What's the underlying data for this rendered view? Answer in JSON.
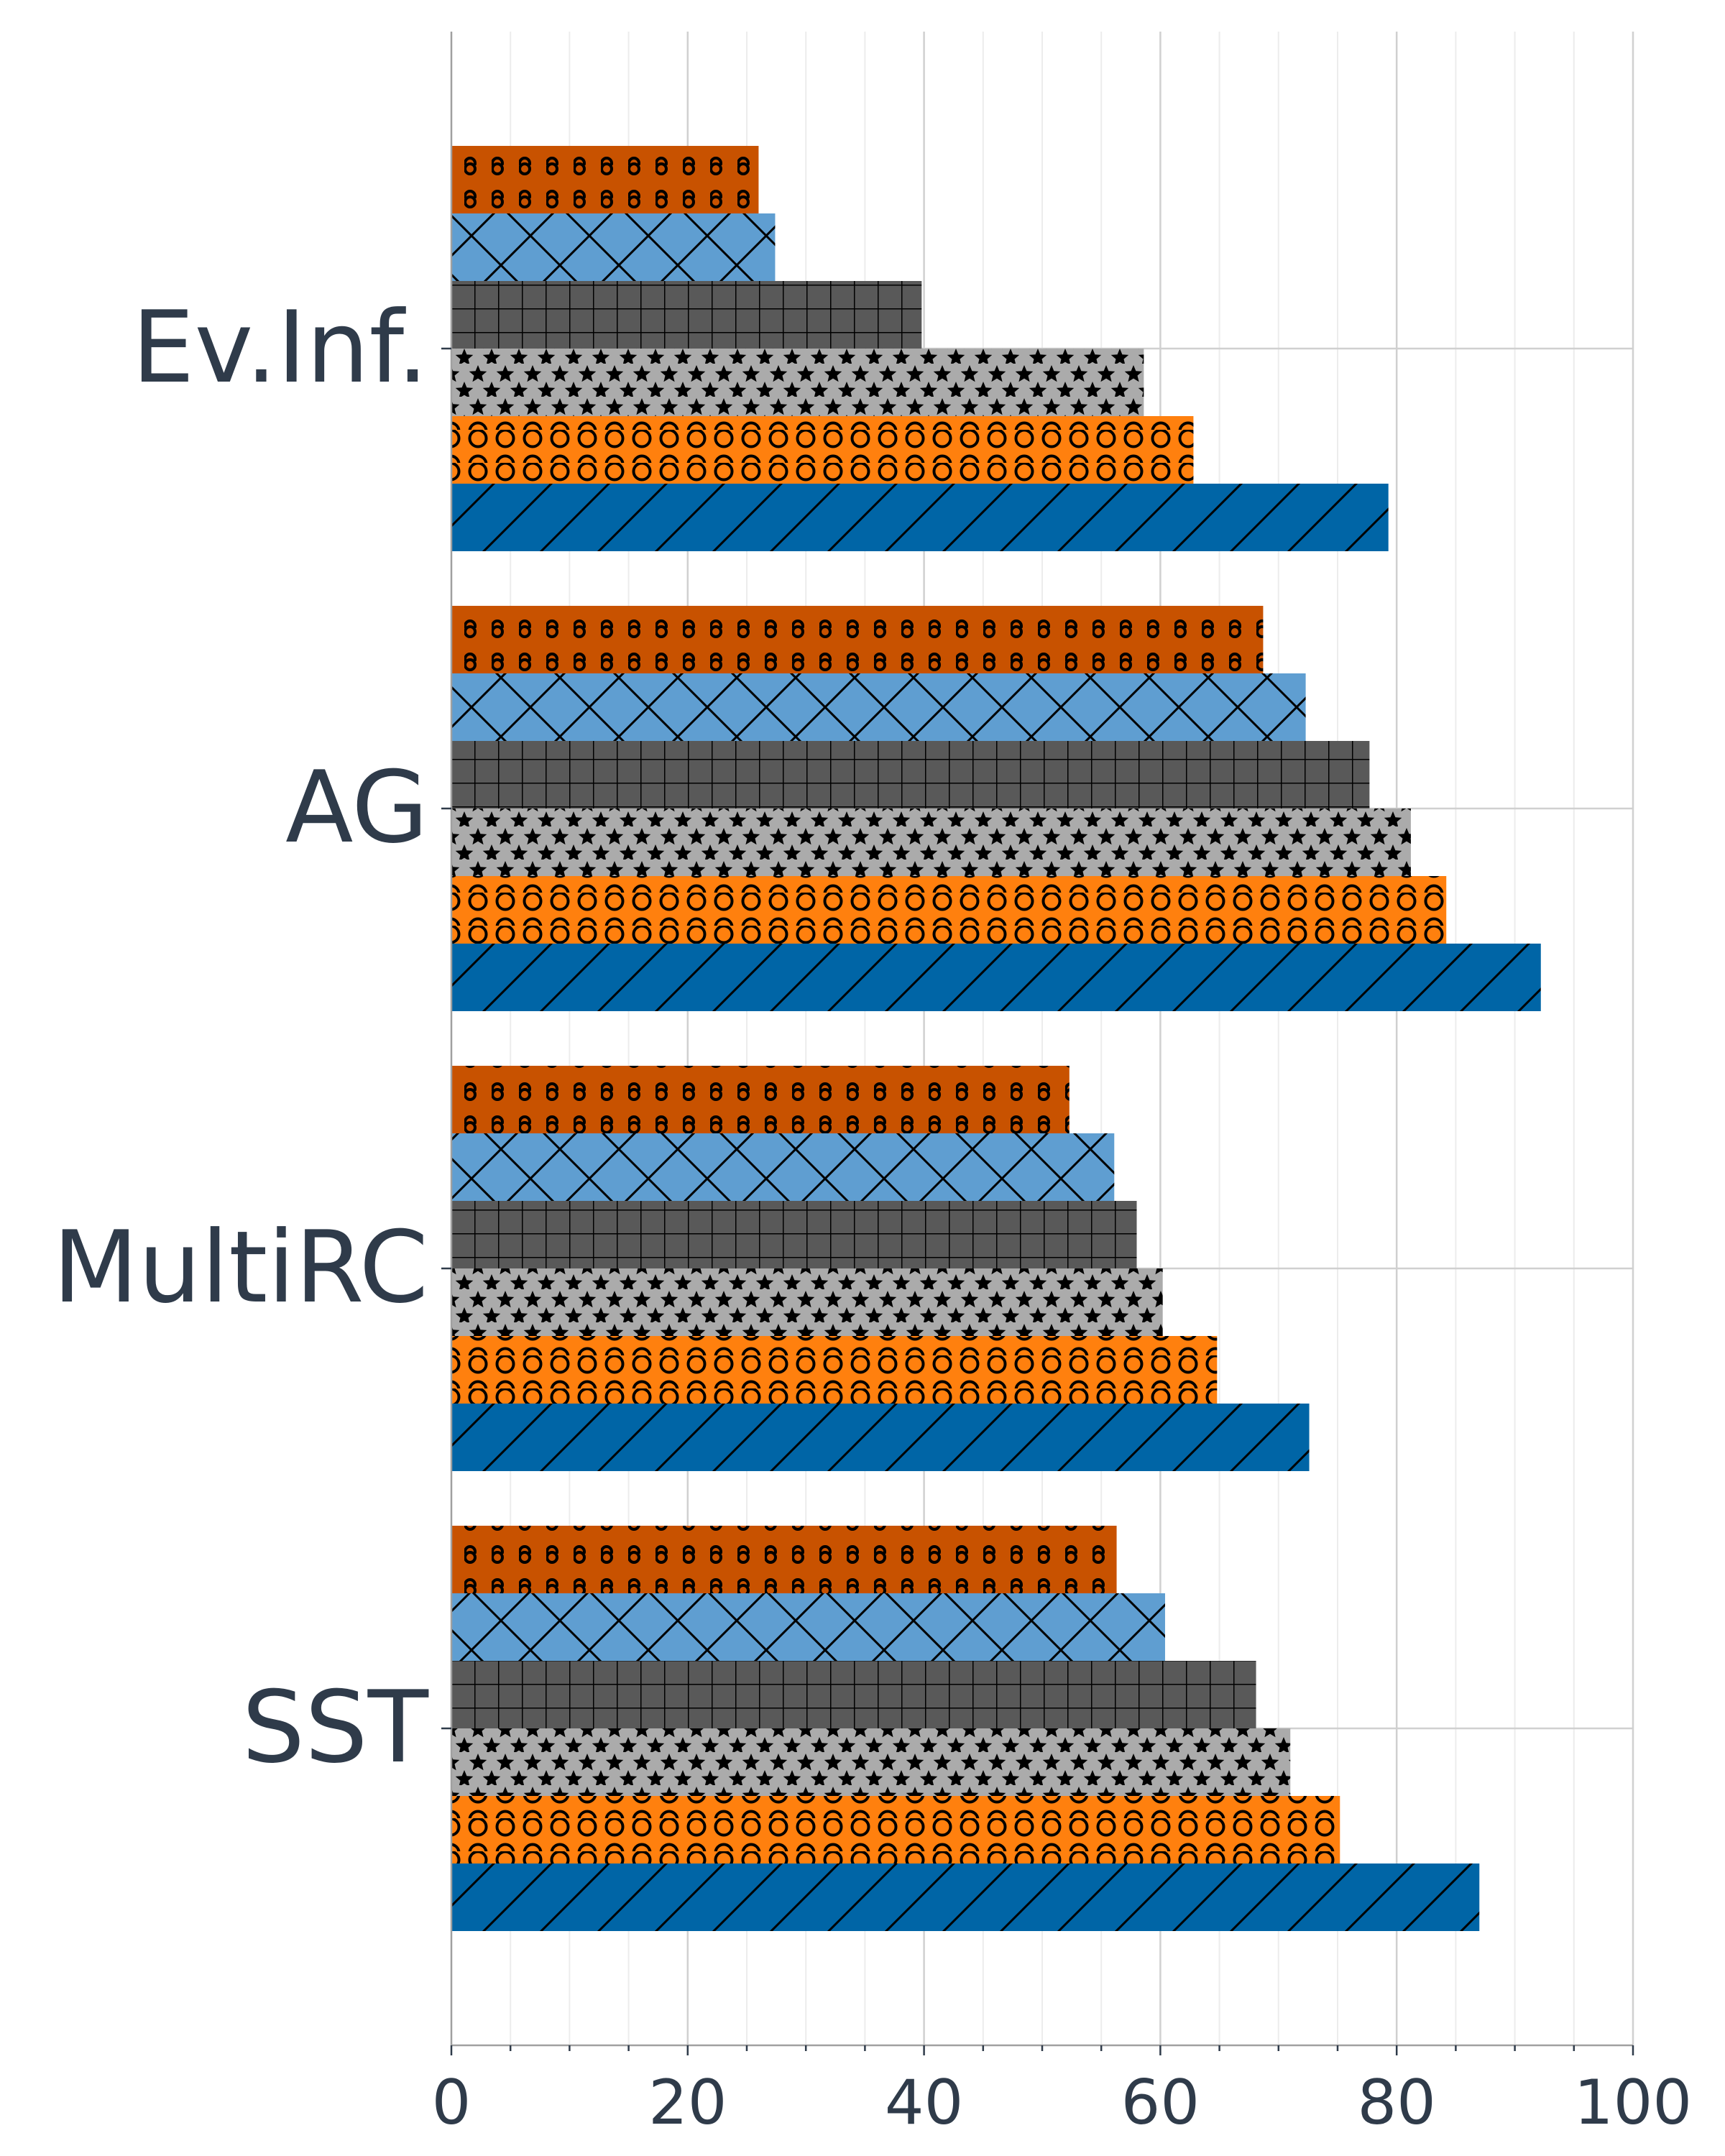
{
  "chart_data": {
    "type": "bar",
    "orientation": "horizontal",
    "categories": [
      "Ev.Inf.",
      "AG",
      "MultiRC",
      "SST"
    ],
    "series": [
      {
        "values": [
          79.3,
          92.2,
          72.6,
          87.0
        ],
        "color": "#0065a6",
        "pattern": "diagonal-hatch"
      },
      {
        "values": [
          62.8,
          84.2,
          64.8,
          75.2
        ],
        "color": "#ff800e",
        "pattern": "large-circles"
      },
      {
        "values": [
          58.6,
          81.2,
          60.2,
          71.0
        ],
        "color": "#ababab",
        "pattern": "stars"
      },
      {
        "values": [
          39.8,
          77.7,
          58.0,
          68.1
        ],
        "color": "#595959",
        "pattern": "grid"
      },
      {
        "values": [
          27.4,
          72.3,
          56.1,
          60.4
        ],
        "color": "#5f9ed1",
        "pattern": "cross-hatch"
      },
      {
        "values": [
          26.0,
          68.7,
          52.3,
          56.3
        ],
        "color": "#c85200",
        "pattern": "small-circles"
      }
    ],
    "xticks": [
      "0",
      "20",
      "40",
      "60",
      "80",
      "100"
    ],
    "xlim": [
      0,
      100
    ],
    "grid": true,
    "legend": "none",
    "title": "",
    "xlabel": "",
    "ylabel": ""
  }
}
